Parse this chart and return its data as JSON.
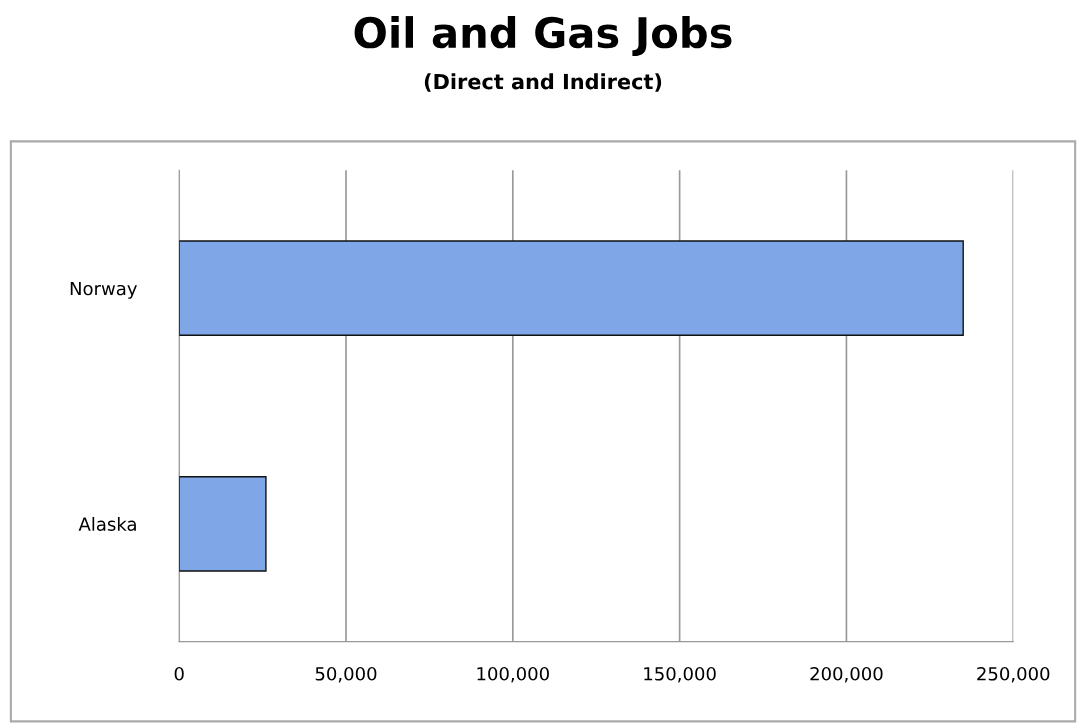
{
  "chart_data": {
    "type": "bar",
    "title": "Oil and Gas Jobs",
    "subtitle": "(Direct and Indirect)",
    "orientation": "horizontal",
    "categories": [
      "Norway",
      "Alaska"
    ],
    "values": [
      235000,
      26000
    ],
    "color": "#7fa6e6",
    "xlim": [
      0,
      250000
    ],
    "xticks": [
      {
        "value": 0,
        "label": "0"
      },
      {
        "value": 50000,
        "label": "50,000"
      },
      {
        "value": 100000,
        "label": "100,000"
      },
      {
        "value": 150000,
        "label": "150,000"
      },
      {
        "value": 200000,
        "label": "200,000"
      },
      {
        "value": 250000,
        "label": "250,000"
      }
    ],
    "grid": "x"
  }
}
